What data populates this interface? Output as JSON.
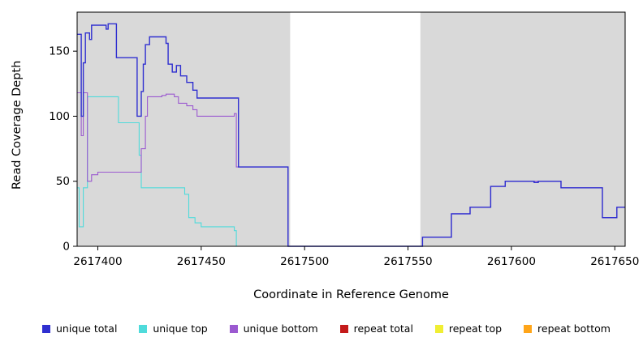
{
  "chart_data": {
    "type": "line",
    "title": "",
    "xlabel": "Coordinate in Reference Genome",
    "ylabel": "Read Coverage Depth",
    "xlim": [
      2617390,
      2617655
    ],
    "ylim": [
      0,
      180
    ],
    "grid": false,
    "legend_position": "bottom",
    "x_ticks": [
      {
        "value": 2617400,
        "label": "2617400"
      },
      {
        "value": 2617450,
        "label": "2617450"
      },
      {
        "value": 2617500,
        "label": "2617500"
      },
      {
        "value": 2617550,
        "label": "2617550"
      },
      {
        "value": 2617600,
        "label": "2617600"
      },
      {
        "value": 2617650,
        "label": "2617650"
      }
    ],
    "y_ticks": [
      {
        "value": 0,
        "label": "0"
      },
      {
        "value": 50,
        "label": "50"
      },
      {
        "value": 100,
        "label": "100"
      },
      {
        "value": 150,
        "label": "150"
      }
    ],
    "background": {
      "plot_color": "#d9d9d9",
      "masked_region": {
        "start": 2617493,
        "end": 2617556,
        "color": "#ffffff"
      }
    },
    "axis_color": "#000000",
    "draw_order": [
      "repeat total",
      "repeat top",
      "unique top",
      "unique bottom",
      "unique total",
      "repeat bottom"
    ],
    "series": [
      {
        "name": "unique total",
        "color": "#2f2fd0",
        "width": 1.4,
        "step": true,
        "points": [
          [
            2617390,
            163
          ],
          [
            2617392,
            100
          ],
          [
            2617393,
            141
          ],
          [
            2617394,
            164
          ],
          [
            2617396,
            159
          ],
          [
            2617397,
            170
          ],
          [
            2617404,
            167
          ],
          [
            2617405,
            171
          ],
          [
            2617408,
            171
          ],
          [
            2617409,
            145
          ],
          [
            2617418,
            145
          ],
          [
            2617419,
            100
          ],
          [
            2617421,
            119
          ],
          [
            2617422,
            140
          ],
          [
            2617423,
            155
          ],
          [
            2617425,
            161
          ],
          [
            2617432,
            161
          ],
          [
            2617433,
            156
          ],
          [
            2617434,
            140
          ],
          [
            2617436,
            134
          ],
          [
            2617438,
            139
          ],
          [
            2617440,
            131
          ],
          [
            2617443,
            126
          ],
          [
            2617446,
            120
          ],
          [
            2617448,
            114
          ],
          [
            2617467,
            114
          ],
          [
            2617468,
            61
          ],
          [
            2617491,
            61
          ],
          [
            2617492,
            0
          ],
          [
            2617556,
            0
          ],
          [
            2617557,
            7
          ],
          [
            2617570,
            7
          ],
          [
            2617571,
            25
          ],
          [
            2617579,
            25
          ],
          [
            2617580,
            30
          ],
          [
            2617589,
            30
          ],
          [
            2617590,
            46
          ],
          [
            2617596,
            46
          ],
          [
            2617597,
            50
          ],
          [
            2617610,
            50
          ],
          [
            2617611,
            49
          ],
          [
            2617613,
            50
          ],
          [
            2617623,
            50
          ],
          [
            2617624,
            45
          ],
          [
            2617643,
            45
          ],
          [
            2617644,
            22
          ],
          [
            2617650,
            22
          ],
          [
            2617651,
            30
          ],
          [
            2617655,
            30
          ]
        ]
      },
      {
        "name": "unique top",
        "color": "#4fdbdb",
        "width": 1.1,
        "step": true,
        "points": [
          [
            2617390,
            45
          ],
          [
            2617391,
            15
          ],
          [
            2617393,
            45
          ],
          [
            2617395,
            115
          ],
          [
            2617409,
            115
          ],
          [
            2617410,
            95
          ],
          [
            2617419,
            95
          ],
          [
            2617420,
            70
          ],
          [
            2617421,
            45
          ],
          [
            2617440,
            45
          ],
          [
            2617442,
            40
          ],
          [
            2617444,
            22
          ],
          [
            2617447,
            18
          ],
          [
            2617450,
            15
          ],
          [
            2617465,
            15
          ],
          [
            2617466,
            12
          ],
          [
            2617467,
            0
          ],
          [
            2617655,
            0
          ]
        ]
      },
      {
        "name": "unique bottom",
        "color": "#9b59d0",
        "width": 1.1,
        "step": true,
        "points": [
          [
            2617390,
            118
          ],
          [
            2617392,
            85
          ],
          [
            2617393,
            118
          ],
          [
            2617395,
            50
          ],
          [
            2617397,
            55
          ],
          [
            2617400,
            57
          ],
          [
            2617419,
            57
          ],
          [
            2617421,
            75
          ],
          [
            2617423,
            100
          ],
          [
            2617424,
            115
          ],
          [
            2617431,
            116
          ],
          [
            2617433,
            117
          ],
          [
            2617437,
            115
          ],
          [
            2617439,
            110
          ],
          [
            2617443,
            108
          ],
          [
            2617446,
            105
          ],
          [
            2617448,
            100
          ],
          [
            2617465,
            100
          ],
          [
            2617466,
            102
          ],
          [
            2617467,
            61
          ],
          [
            2617491,
            61
          ],
          [
            2617492,
            0
          ],
          [
            2617556,
            0
          ],
          [
            2617557,
            7
          ],
          [
            2617570,
            7
          ],
          [
            2617571,
            25
          ],
          [
            2617579,
            25
          ],
          [
            2617580,
            30
          ],
          [
            2617589,
            30
          ],
          [
            2617590,
            46
          ],
          [
            2617596,
            46
          ],
          [
            2617597,
            50
          ],
          [
            2617623,
            50
          ],
          [
            2617624,
            45
          ],
          [
            2617643,
            45
          ],
          [
            2617644,
            22
          ],
          [
            2617650,
            22
          ],
          [
            2617651,
            30
          ],
          [
            2617655,
            30
          ]
        ]
      },
      {
        "name": "repeat total",
        "color": "#c41a1a",
        "width": 1.1,
        "step": true,
        "points": [
          [
            2617390,
            0
          ],
          [
            2617655,
            0
          ]
        ]
      },
      {
        "name": "repeat top",
        "color": "#f0ee33",
        "width": 1.1,
        "step": true,
        "points": [
          [
            2617390,
            0
          ],
          [
            2617655,
            0
          ]
        ]
      },
      {
        "name": "repeat bottom",
        "color": "#ffa519",
        "width": 1.1,
        "step": true,
        "points": [
          [
            2617390,
            0
          ],
          [
            2617467,
            0
          ]
        ]
      }
    ]
  },
  "legend": {
    "items": [
      {
        "label": "unique total",
        "color": "#2f2fd0"
      },
      {
        "label": "unique top",
        "color": "#4fdbdb"
      },
      {
        "label": "unique bottom",
        "color": "#9b59d0"
      },
      {
        "label": "repeat total",
        "color": "#c41a1a"
      },
      {
        "label": "repeat top",
        "color": "#f0ee33"
      },
      {
        "label": "repeat bottom",
        "color": "#ffa519"
      }
    ]
  }
}
